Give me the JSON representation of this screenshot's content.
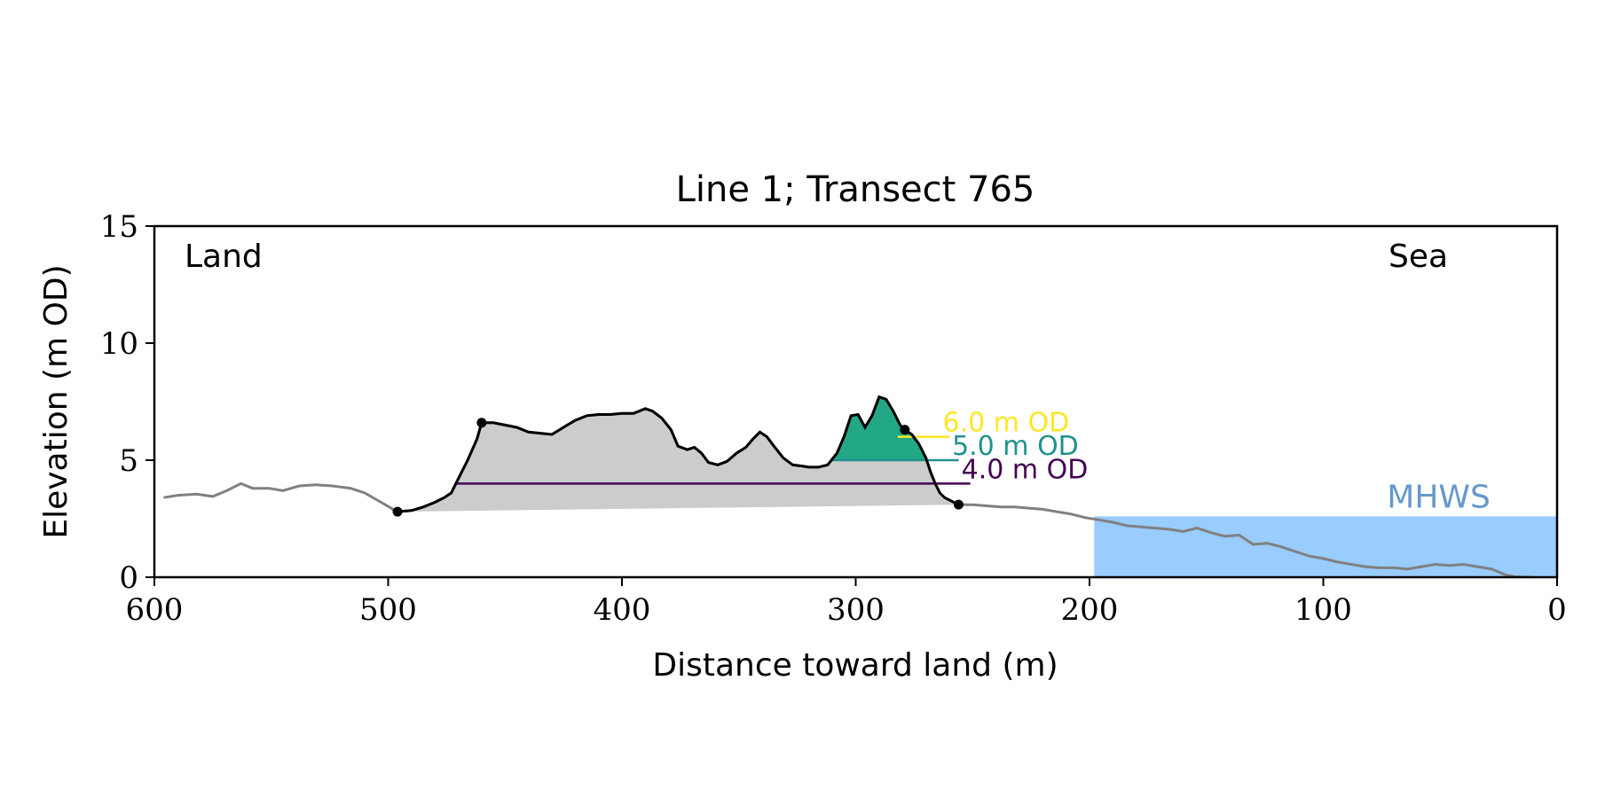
{
  "chart_data": {
    "type": "area",
    "title": "Line 1; Transect 765",
    "xlabel": "Distance toward land (m)",
    "ylabel": "Elevation (m OD)",
    "xlim": [
      600,
      0
    ],
    "ylim": [
      0,
      15
    ],
    "x_ticks": [
      "600",
      "500",
      "400",
      "300",
      "200",
      "100",
      "0"
    ],
    "y_ticks": [
      "0",
      "5",
      "10",
      "15"
    ],
    "grid": false,
    "legend": "none",
    "annotations": {
      "land": "Land",
      "sea": "Sea",
      "mhws_label": "MHWS",
      "mhws_level": 2.6,
      "mhws_from_x": 198
    },
    "thresholds": [
      {
        "level": 4.0,
        "label": "4.0 m OD",
        "color": "#440154"
      },
      {
        "level": 5.0,
        "label": "5.0 m OD",
        "color": "#21918c"
      },
      {
        "level": 6.0,
        "label": "6.0 m OD",
        "color": "#fde725"
      }
    ],
    "colors": {
      "profile": "#808080",
      "dune_profile": "#000000",
      "volume_4m": "#482475",
      "volume_5m": "#22a884",
      "base_fill": "#cccccc",
      "sea": "#99ccff",
      "mhws_text": "#6699cc"
    },
    "dune_markers": [
      {
        "x": 496,
        "y": 2.8
      },
      {
        "x": 460,
        "y": 6.6
      },
      {
        "x": 279,
        "y": 6.3
      },
      {
        "x": 256,
        "y": 3.1
      }
    ],
    "profile": [
      [
        596,
        3.4
      ],
      [
        590,
        3.5
      ],
      [
        582,
        3.55
      ],
      [
        575,
        3.45
      ],
      [
        569,
        3.7
      ],
      [
        563,
        4.0
      ],
      [
        558,
        3.8
      ],
      [
        551,
        3.8
      ],
      [
        545,
        3.7
      ],
      [
        538,
        3.9
      ],
      [
        531,
        3.95
      ],
      [
        524,
        3.9
      ],
      [
        516,
        3.8
      ],
      [
        510,
        3.6
      ],
      [
        503,
        3.2
      ],
      [
        497,
        2.85
      ],
      [
        496,
        2.8
      ],
      [
        490,
        2.85
      ],
      [
        485,
        3.0
      ],
      [
        480,
        3.2
      ],
      [
        476,
        3.4
      ],
      [
        473,
        3.6
      ],
      [
        470,
        4.2
      ],
      [
        466,
        5.0
      ],
      [
        462,
        5.9
      ],
      [
        460,
        6.6
      ],
      [
        455,
        6.6
      ],
      [
        450,
        6.5
      ],
      [
        445,
        6.4
      ],
      [
        440,
        6.2
      ],
      [
        435,
        6.15
      ],
      [
        430,
        6.1
      ],
      [
        425,
        6.4
      ],
      [
        420,
        6.7
      ],
      [
        415,
        6.9
      ],
      [
        410,
        6.95
      ],
      [
        405,
        6.95
      ],
      [
        400,
        7.0
      ],
      [
        395,
        7.0
      ],
      [
        390,
        7.2
      ],
      [
        387,
        7.1
      ],
      [
        383,
        6.8
      ],
      [
        379,
        6.3
      ],
      [
        376,
        5.6
      ],
      [
        372,
        5.45
      ],
      [
        369,
        5.55
      ],
      [
        366,
        5.3
      ],
      [
        363,
        4.9
      ],
      [
        359,
        4.8
      ],
      [
        355,
        4.95
      ],
      [
        351,
        5.3
      ],
      [
        347,
        5.55
      ],
      [
        344,
        5.9
      ],
      [
        341,
        6.2
      ],
      [
        338,
        6.0
      ],
      [
        335,
        5.6
      ],
      [
        331,
        5.1
      ],
      [
        327,
        4.8
      ],
      [
        323,
        4.75
      ],
      [
        320,
        4.7
      ],
      [
        316,
        4.7
      ],
      [
        312,
        4.8
      ],
      [
        308,
        5.3
      ],
      [
        305,
        6.0
      ],
      [
        302,
        6.9
      ],
      [
        299,
        6.95
      ],
      [
        296,
        6.4
      ],
      [
        293,
        6.9
      ],
      [
        290,
        7.7
      ],
      [
        287,
        7.6
      ],
      [
        284,
        7.1
      ],
      [
        281,
        6.5
      ],
      [
        279,
        6.3
      ],
      [
        276,
        6.1
      ],
      [
        273,
        5.7
      ],
      [
        270,
        5.1
      ],
      [
        268,
        4.5
      ],
      [
        266,
        4.0
      ],
      [
        264,
        3.6
      ],
      [
        262,
        3.4
      ],
      [
        259,
        3.25
      ],
      [
        256,
        3.1
      ],
      [
        250,
        3.1
      ],
      [
        244,
        3.05
      ],
      [
        238,
        3.0
      ],
      [
        232,
        3.0
      ],
      [
        226,
        2.95
      ],
      [
        220,
        2.9
      ],
      [
        214,
        2.8
      ],
      [
        208,
        2.7
      ],
      [
        202,
        2.55
      ],
      [
        196,
        2.45
      ],
      [
        190,
        2.35
      ],
      [
        184,
        2.2
      ],
      [
        178,
        2.15
      ],
      [
        172,
        2.1
      ],
      [
        166,
        2.05
      ],
      [
        160,
        1.95
      ],
      [
        154,
        2.1
      ],
      [
        148,
        1.9
      ],
      [
        142,
        1.75
      ],
      [
        136,
        1.8
      ],
      [
        130,
        1.4
      ],
      [
        124,
        1.45
      ],
      [
        118,
        1.3
      ],
      [
        112,
        1.1
      ],
      [
        106,
        0.9
      ],
      [
        100,
        0.8
      ],
      [
        94,
        0.65
      ],
      [
        88,
        0.55
      ],
      [
        82,
        0.45
      ],
      [
        76,
        0.4
      ],
      [
        70,
        0.4
      ],
      [
        64,
        0.35
      ],
      [
        58,
        0.45
      ],
      [
        52,
        0.55
      ],
      [
        46,
        0.5
      ],
      [
        40,
        0.55
      ],
      [
        34,
        0.45
      ],
      [
        28,
        0.35
      ],
      [
        22,
        0.1
      ],
      [
        18,
        0.02
      ],
      [
        10,
        0.0
      ]
    ]
  }
}
